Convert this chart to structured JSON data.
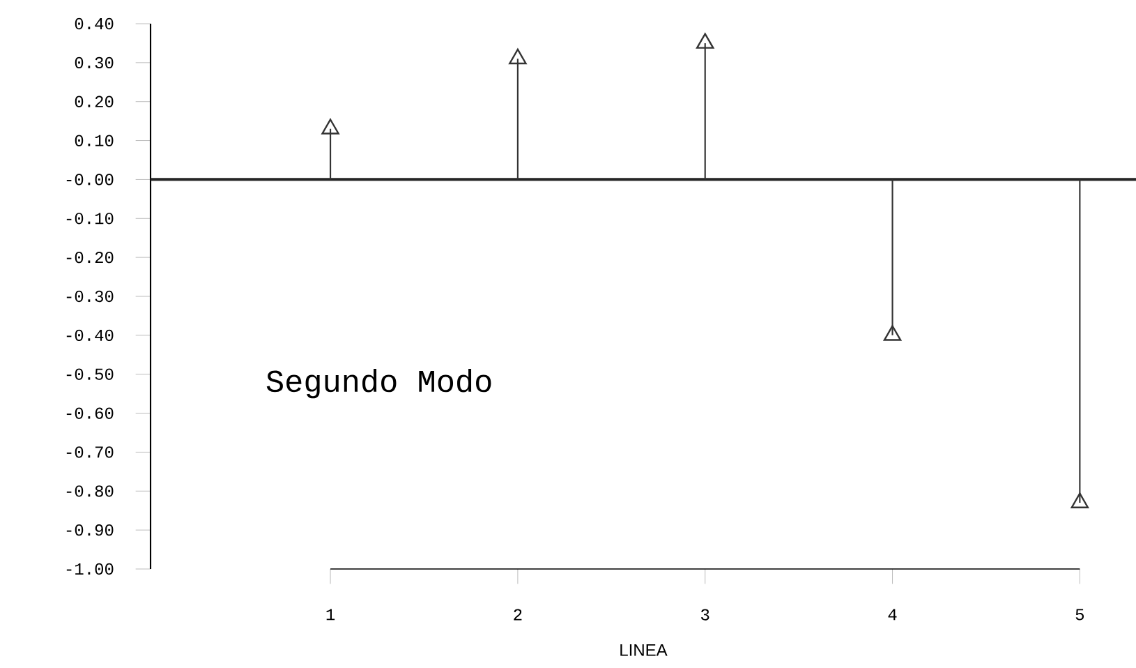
{
  "chart_data": {
    "type": "lollipop",
    "xlabel": "LINEA",
    "categories": [
      "1",
      "2",
      "3",
      "4",
      "5"
    ],
    "values": [
      0.13,
      0.31,
      0.35,
      -0.4,
      -0.83
    ],
    "color": "#333333",
    "marker": "triangle",
    "ylim": [
      -1.0,
      0.4
    ],
    "yticks": [
      {
        "value": 0.4,
        "label": "0.40"
      },
      {
        "value": 0.3,
        "label": "0.30"
      },
      {
        "value": 0.2,
        "label": "0.20"
      },
      {
        "value": 0.1,
        "label": "0.10"
      },
      {
        "value": 0,
        "label": "-0.00"
      },
      {
        "value": -0.1,
        "label": "-0.10"
      },
      {
        "value": -0.2,
        "label": "-0.20"
      },
      {
        "value": -0.3,
        "label": "-0.30"
      },
      {
        "value": -0.4,
        "label": "-0.40"
      },
      {
        "value": -0.5,
        "label": "-0.50"
      },
      {
        "value": -0.6,
        "label": "-0.60"
      },
      {
        "value": -0.7,
        "label": "-0.70"
      },
      {
        "value": -0.8,
        "label": "-0.80"
      },
      {
        "value": -0.9,
        "label": "-0.90"
      },
      {
        "value": -1.0,
        "label": "-1.00"
      }
    ],
    "ref_lines": [
      {
        "axis": "y",
        "value": 0
      }
    ],
    "annotations": [
      "Segundo Modo"
    ]
  }
}
